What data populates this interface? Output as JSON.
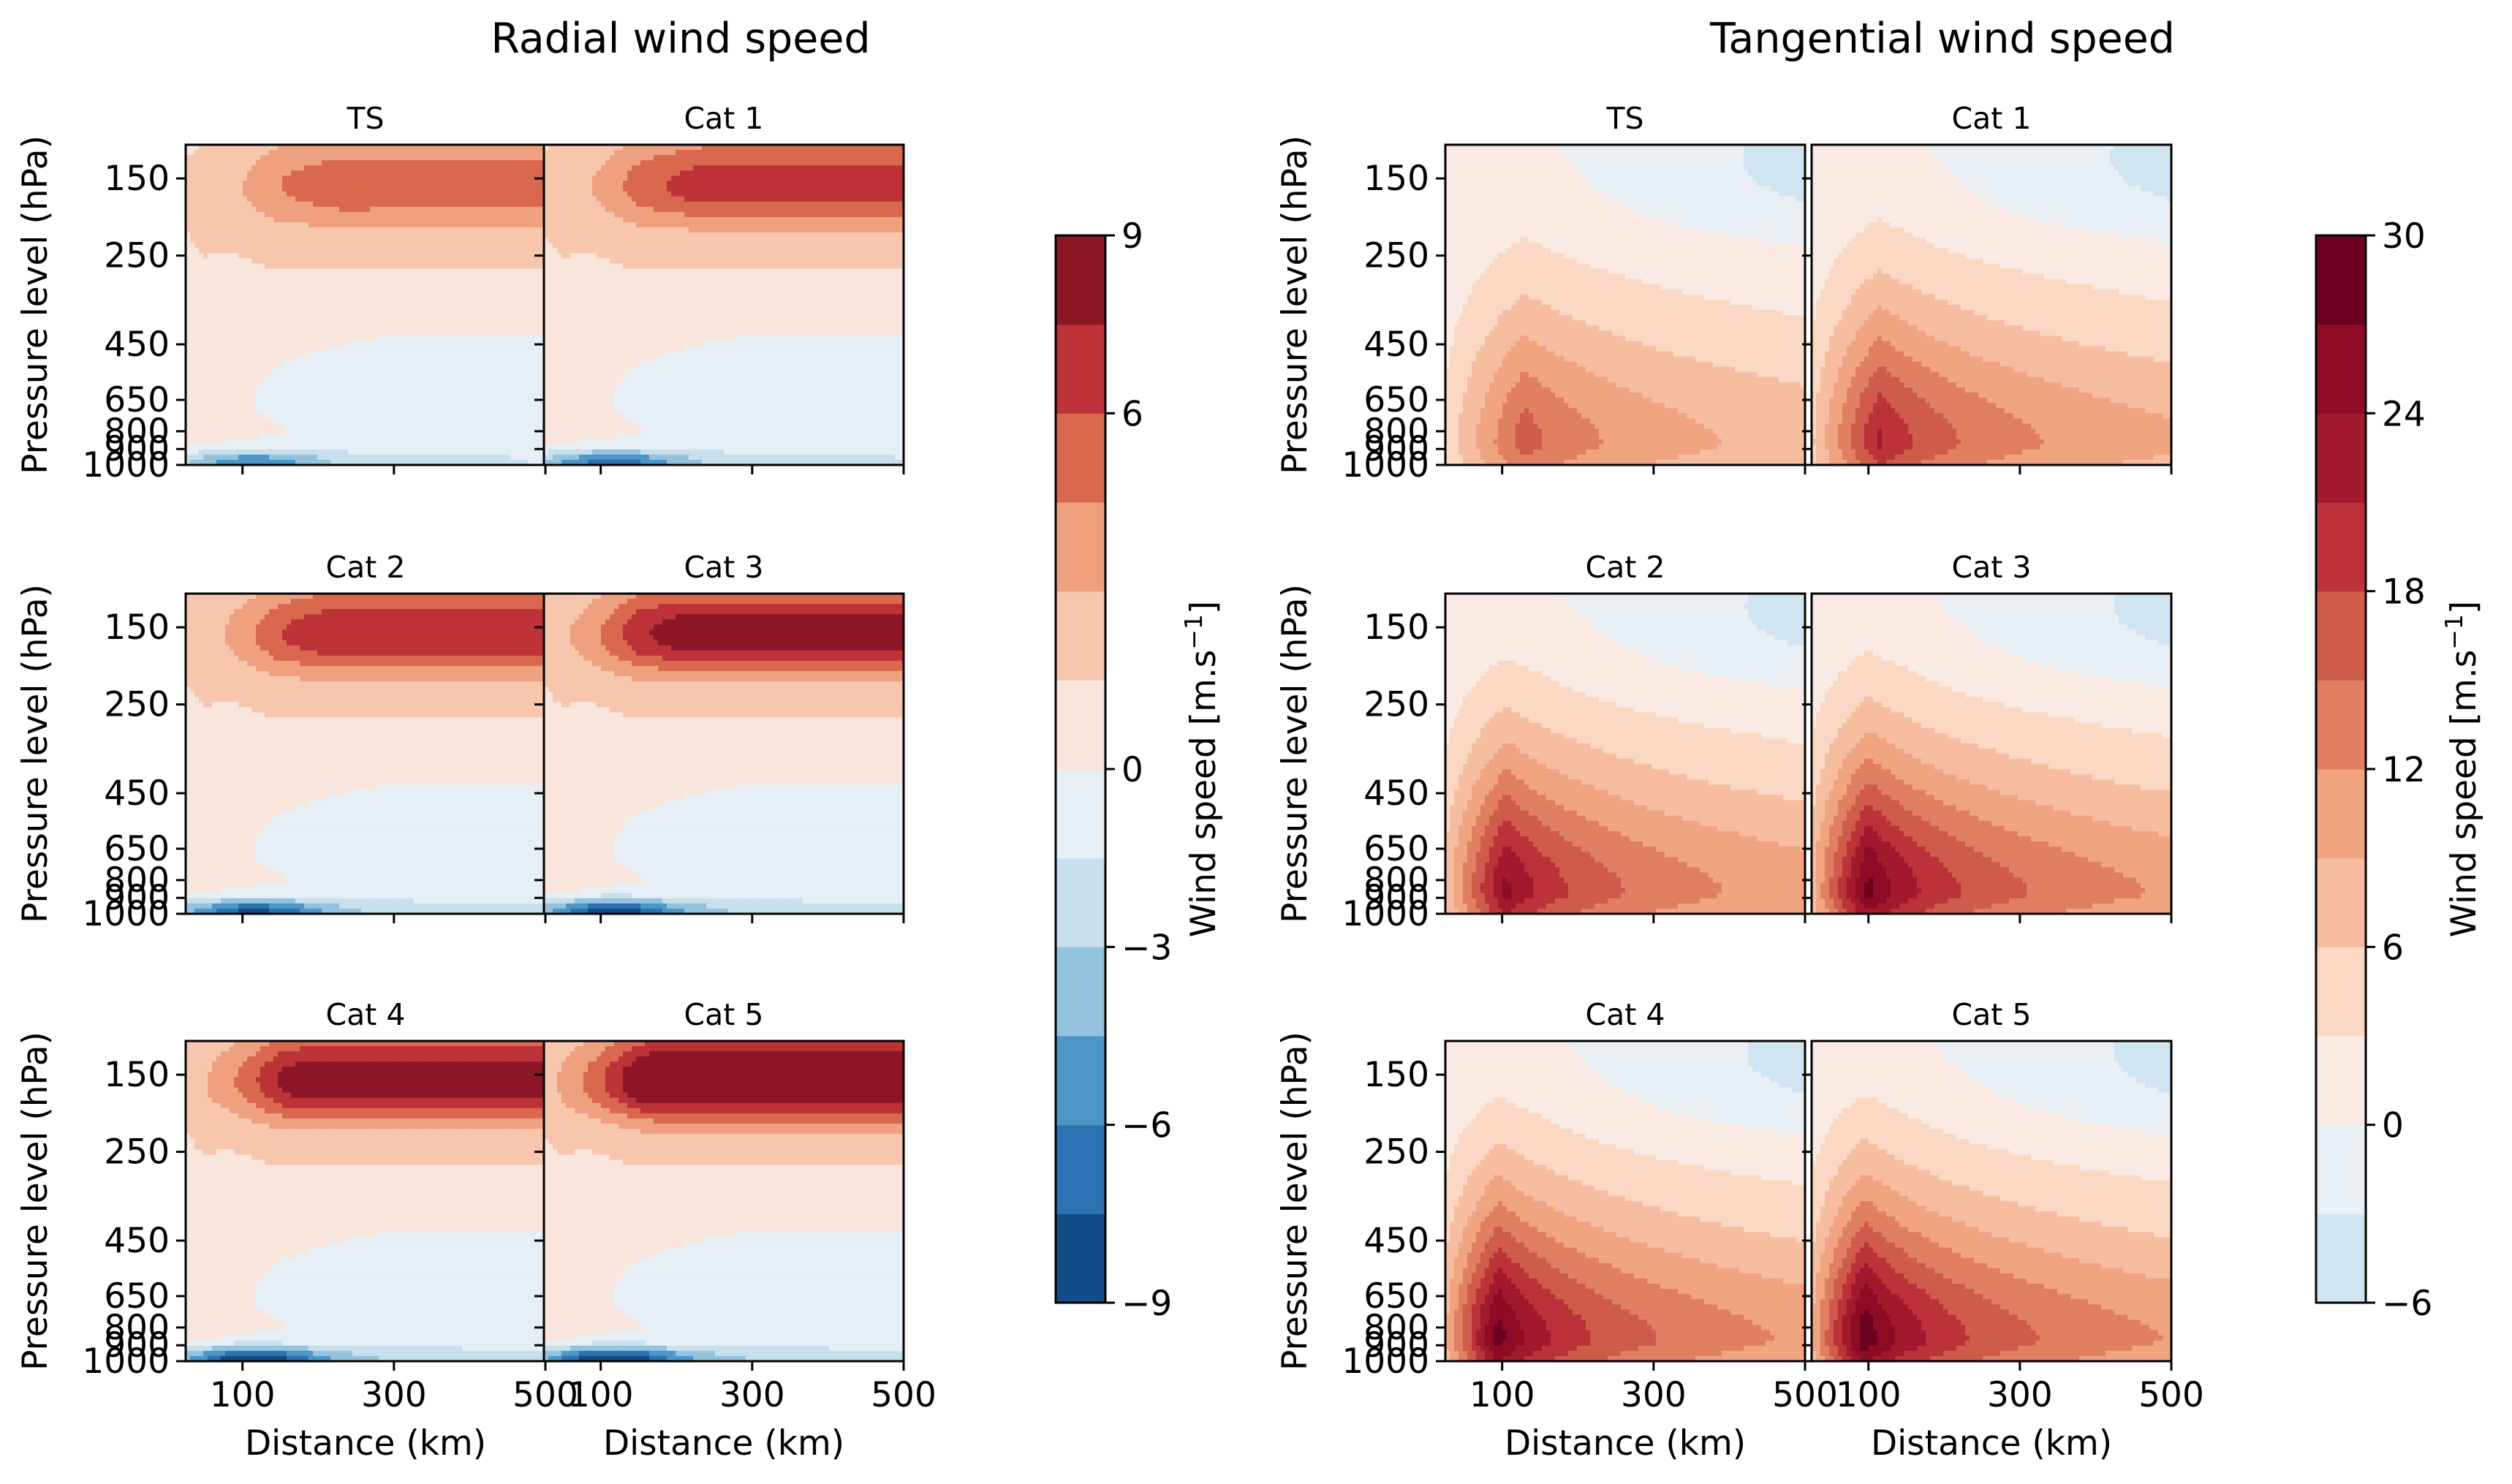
{
  "chart_data": [
    {
      "type": "contourf",
      "title": "Radial wind speed",
      "xlabel": "Distance (km)",
      "ylabel": "Pressure level (hPa)",
      "x_ticks": [
        "100",
        "300",
        "500"
      ],
      "y_ticks": [
        "150",
        "250",
        "450",
        "650",
        "800",
        "900",
        "1000"
      ],
      "xlim": [
        25,
        500
      ],
      "ylim": [
        1000,
        100
      ],
      "colorbar": {
        "label": "Wind speed [m.s",
        "label_sup": "−1",
        "label_end": "]",
        "levels": [
          -9,
          -7.5,
          -6,
          -4.5,
          -3,
          -1.5,
          0,
          1.5,
          3,
          4.5,
          6,
          7.5,
          9
        ],
        "colors": [
          "#134c89",
          "#2a72b2",
          "#4d97c8",
          "#93c3de",
          "#c8dfec",
          "#e5eff5",
          "#f8e6dd",
          "#f7c6ad",
          "#efa17f",
          "#d9684f",
          "#bd3236",
          "#8c1526"
        ],
        "ticks": [
          "9",
          "6",
          "−3",
          "−6",
          "−9"
        ],
        "tick_values": [
          9,
          6,
          -3,
          -6,
          -9
        ],
        "zero_tick": "0",
        "colormap": "RdBu_r"
      },
      "panels": [
        {
          "title": "TS",
          "low_inflow_max": 5.2,
          "outflow_max": 3.8,
          "outflow_start_km": 190
        },
        {
          "title": "Cat 1",
          "low_inflow_max": 6.2,
          "outflow_max": 5.2,
          "outflow_start_km": 200
        },
        {
          "title": "Cat 2",
          "low_inflow_max": 7.3,
          "outflow_max": 5.6,
          "outflow_start_km": 180
        },
        {
          "title": "Cat 3",
          "low_inflow_max": 7.8,
          "outflow_max": 6.5,
          "outflow_start_km": 160
        },
        {
          "title": "Cat 4",
          "low_inflow_max": 8.3,
          "outflow_max": 7.0,
          "outflow_start_km": 150
        },
        {
          "title": "Cat 5",
          "low_inflow_max": 8.6,
          "outflow_max": 8.3,
          "outflow_start_km": 140
        }
      ]
    },
    {
      "type": "contourf",
      "title": "Tangential wind speed",
      "xlabel": "Distance (km)",
      "ylabel": "Pressure level (hPa)",
      "x_ticks": [
        "100",
        "300",
        "500"
      ],
      "y_ticks": [
        "150",
        "250",
        "450",
        "650",
        "800",
        "900",
        "1000"
      ],
      "xlim": [
        25,
        500
      ],
      "ylim": [
        1000,
        100
      ],
      "colorbar": {
        "label": "Wind speed [m.s",
        "label_sup": "−1",
        "label_end": "]",
        "levels": [
          -6,
          -3,
          0,
          3,
          6,
          9,
          12,
          15,
          18,
          21,
          24,
          27,
          30
        ],
        "colors": [
          "#d1e5f0",
          "#e8f0f6",
          "#f9ebe3",
          "#fbd8c4",
          "#f6bda1",
          "#f0a480",
          "#e07f62",
          "#cf5b4b",
          "#bb3238",
          "#a1192c",
          "#8e0b25",
          "#6c0020"
        ],
        "ticks": [
          "30",
          "24",
          "18",
          "12",
          "6",
          "0",
          "−6"
        ],
        "tick_values": [
          30,
          24,
          18,
          12,
          6,
          0,
          -6
        ],
        "colormap": "RdBu_r"
      },
      "panels": [
        {
          "title": "TS",
          "vmax": 16.5,
          "rmax_km": 130
        },
        {
          "title": "Cat 1",
          "vmax": 21.5,
          "rmax_km": 115
        },
        {
          "title": "Cat 2",
          "vmax": 24.8,
          "rmax_km": 105
        },
        {
          "title": "Cat 3",
          "vmax": 28.0,
          "rmax_km": 100
        },
        {
          "title": "Cat 4",
          "vmax": 28.5,
          "rmax_km": 95
        },
        {
          "title": "Cat 5",
          "vmax": 29.5,
          "rmax_km": 95
        }
      ]
    }
  ]
}
